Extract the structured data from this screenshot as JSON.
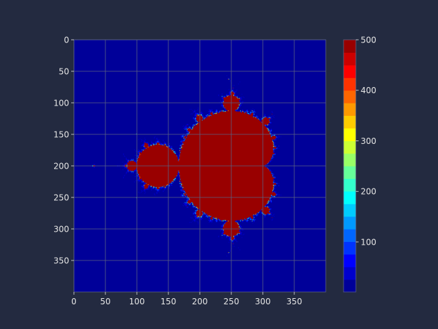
{
  "chart_data": {
    "type": "heatmap",
    "title": "",
    "xlabel": "",
    "ylabel": "",
    "image_size": [
      400,
      400
    ],
    "xlim": [
      0,
      400
    ],
    "ylim": [
      400,
      0
    ],
    "x_ticks": [
      0,
      50,
      100,
      150,
      200,
      250,
      300,
      350
    ],
    "y_ticks": [
      0,
      50,
      100,
      150,
      200,
      250,
      300,
      350
    ],
    "x_tick_labels": [
      "0",
      "50",
      "100",
      "150",
      "200",
      "250",
      "300",
      "350"
    ],
    "y_tick_labels": [
      "0",
      "50",
      "100",
      "150",
      "200",
      "250",
      "300",
      "350"
    ],
    "grid": true,
    "colormap": "jet",
    "colorbar": {
      "range": [
        1,
        500
      ],
      "ticks": [
        100,
        200,
        300,
        400,
        500
      ],
      "tick_labels": [
        "100",
        "200",
        "300",
        "400",
        "500"
      ],
      "levels": 20
    },
    "fractal": {
      "name": "Mandelbrot set iteration count",
      "max_iterations": 500,
      "real_range": [
        -2.0,
        1.0
      ],
      "imag_range": [
        -1.5,
        1.5
      ]
    },
    "colors": {
      "background": "#232a40",
      "grid": "#5a6282",
      "text": "#e6e6e6"
    }
  }
}
